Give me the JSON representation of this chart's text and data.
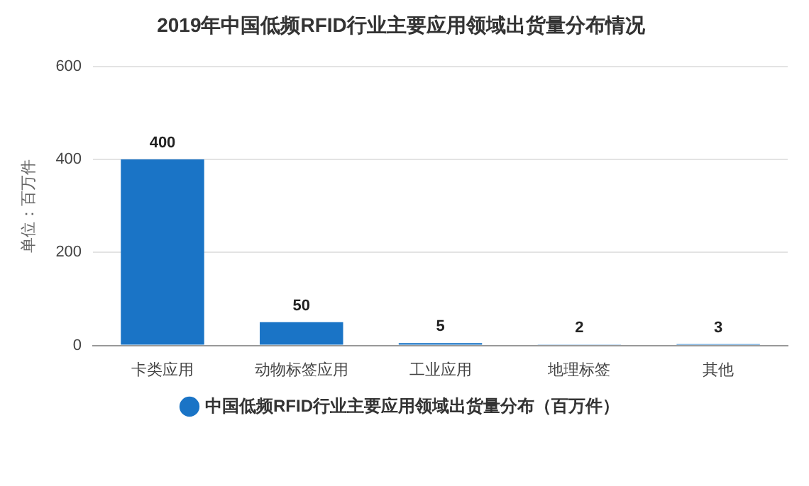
{
  "chart_data": {
    "type": "bar",
    "title": "2019年中国低频RFID行业主要应用领域出货量分布情况",
    "ylabel": "单位：百万件",
    "categories": [
      "卡类应用",
      "动物标签应用",
      "工业应用",
      "地理标签",
      "其他"
    ],
    "series": [
      {
        "name": "中国低频RFID行业主要应用领域出货量分布（百万件）",
        "color": "#1a74c6",
        "values": [
          400,
          50,
          5,
          2,
          3
        ]
      }
    ],
    "ylim": [
      0,
      600
    ],
    "yticks": [
      0,
      200,
      400,
      600
    ],
    "grid": "y",
    "legend": "bottom",
    "data_labels": true
  }
}
